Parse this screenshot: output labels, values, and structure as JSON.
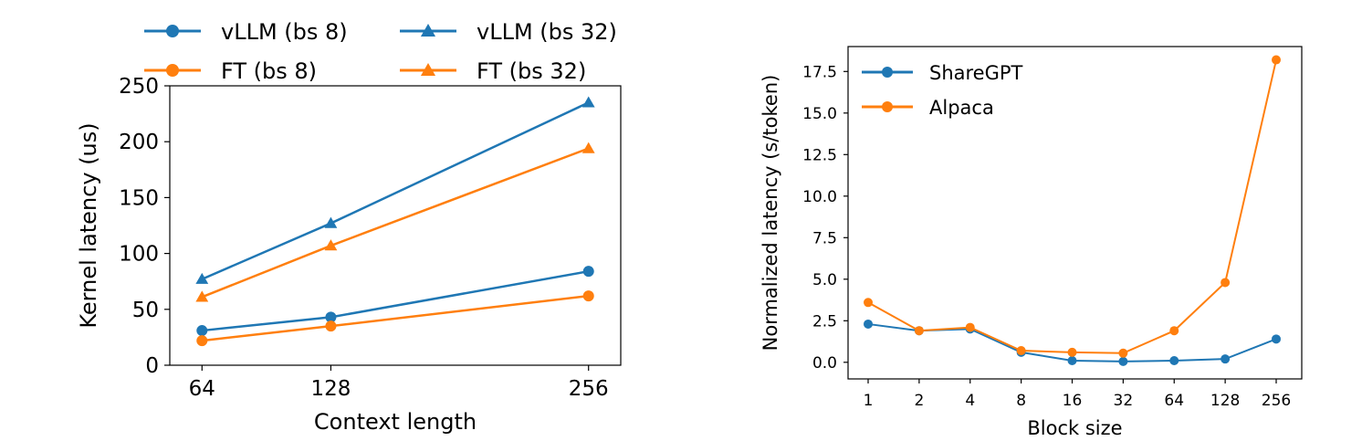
{
  "chart_data": [
    {
      "type": "line",
      "xlabel": "Context length",
      "ylabel": "Kernel latency (us)",
      "categories": [
        "64",
        "128",
        "256"
      ],
      "x": [
        64,
        128,
        256
      ],
      "ylim": [
        0,
        250
      ],
      "yticks": [
        0,
        50,
        100,
        150,
        200,
        250
      ],
      "grid": false,
      "legend_position": "top, outside, 2 columns",
      "series": [
        {
          "name": "vLLM (bs 8)",
          "marker": "circle",
          "color": "#1f77b4",
          "values": [
            31,
            43,
            84
          ]
        },
        {
          "name": "vLLM (bs 32)",
          "marker": "triangle",
          "color": "#1f77b4",
          "values": [
            77,
            127,
            235
          ]
        },
        {
          "name": "FT (bs 8)",
          "marker": "circle",
          "color": "#ff7f0e",
          "values": [
            22,
            35,
            62
          ]
        },
        {
          "name": "FT (bs 32)",
          "marker": "triangle",
          "color": "#ff7f0e",
          "values": [
            61,
            107,
            194
          ]
        }
      ]
    },
    {
      "type": "line",
      "xlabel": "Block size",
      "ylabel": "Normalized latency (s/token)",
      "categories": [
        "1",
        "2",
        "4",
        "8",
        "16",
        "32",
        "64",
        "128",
        "256"
      ],
      "ylim": [
        -1,
        19
      ],
      "yticks": [
        "0.0",
        "2.5",
        "5.0",
        "7.5",
        "10.0",
        "12.5",
        "15.0",
        "17.5"
      ],
      "grid": false,
      "legend_position": "upper-left",
      "series": [
        {
          "name": "ShareGPT",
          "marker": "circle",
          "color": "#1f77b4",
          "values": [
            2.3,
            1.9,
            2.0,
            0.6,
            0.1,
            0.05,
            0.1,
            0.2,
            1.4
          ]
        },
        {
          "name": "Alpaca",
          "marker": "circle",
          "color": "#ff7f0e",
          "values": [
            3.6,
            1.9,
            2.1,
            0.7,
            0.6,
            0.55,
            1.9,
            4.8,
            18.2
          ]
        }
      ]
    }
  ]
}
